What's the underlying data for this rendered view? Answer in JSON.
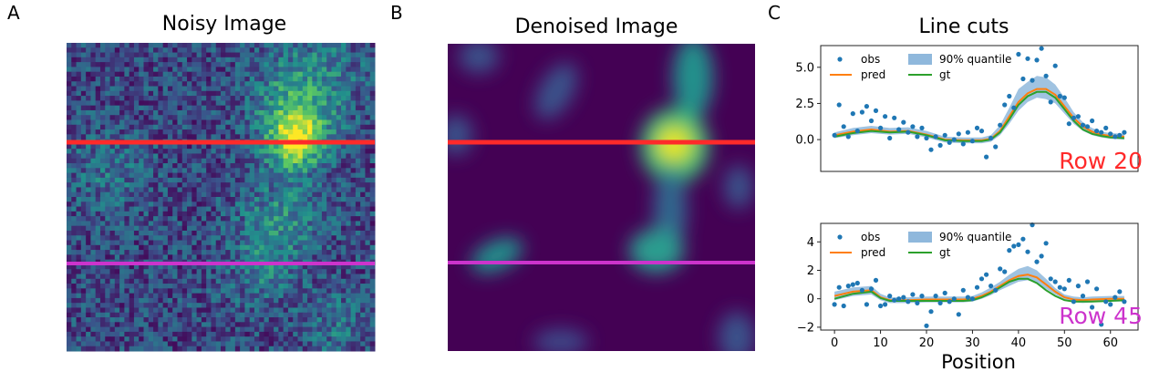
{
  "panels": {
    "a": {
      "label": "A",
      "title": "Noisy Image"
    },
    "b": {
      "label": "B",
      "title": "Denoised Image"
    },
    "c": {
      "label": "C",
      "title": "Line cuts"
    }
  },
  "colors": {
    "obs": "#1f77b4",
    "pred": "#ff7f0e",
    "gt": "#2ca02c",
    "quantile": "#8fb8dc",
    "row20": "#ff2a2a",
    "row45": "#cc33cc"
  },
  "legend": {
    "obs": "obs",
    "pred": "pred",
    "quantile": "90% quantile",
    "gt": "gt"
  },
  "chart_data": [
    {
      "type": "heatmap",
      "title": "Noisy Image",
      "grid_size": [
        64,
        64
      ],
      "colormap": "viridis",
      "highlighted_rows": [
        20,
        45
      ]
    },
    {
      "type": "heatmap",
      "title": "Denoised Image",
      "grid_size": [
        64,
        64
      ],
      "colormap": "viridis",
      "highlighted_rows": [
        20,
        45
      ]
    },
    {
      "type": "scatter",
      "title": "Line cuts",
      "annotation": "Row 20",
      "xlim": [
        -3,
        66
      ],
      "ylim": [
        -2.2,
        6.5
      ],
      "yticks": [
        0.0,
        2.5,
        5.0
      ],
      "ytick_labels": [
        "0.0",
        "2.5",
        "5.0"
      ],
      "obs": {
        "x": [
          0,
          1,
          2,
          3,
          4,
          5,
          6,
          7,
          8,
          9,
          10,
          11,
          12,
          13,
          14,
          15,
          16,
          17,
          18,
          19,
          20,
          21,
          22,
          23,
          24,
          25,
          26,
          27,
          28,
          29,
          30,
          31,
          32,
          33,
          34,
          35,
          36,
          37,
          38,
          39,
          40,
          41,
          42,
          43,
          44,
          45,
          46,
          47,
          48,
          49,
          50,
          51,
          52,
          53,
          54,
          55,
          56,
          57,
          58,
          59,
          60,
          61,
          62,
          63
        ],
        "y": [
          0.3,
          2.4,
          0.9,
          0.2,
          1.8,
          0.6,
          1.9,
          2.3,
          1.3,
          2.0,
          0.8,
          1.6,
          0.1,
          1.5,
          0.7,
          1.2,
          0.5,
          0.9,
          0.2,
          0.8,
          0.1,
          -0.7,
          0.2,
          -0.4,
          0.3,
          -0.2,
          0.0,
          0.4,
          -0.3,
          0.5,
          -0.1,
          0.8,
          0.6,
          -1.2,
          0.1,
          -0.5,
          1.0,
          2.4,
          3.0,
          2.2,
          5.9,
          4.2,
          5.6,
          4.1,
          5.5,
          6.3,
          4.4,
          2.6,
          5.1,
          3.0,
          2.9,
          1.1,
          1.5,
          1.6,
          1.0,
          0.9,
          1.3,
          0.6,
          0.5,
          0.8,
          0.4,
          0.2,
          0.3,
          0.5
        ]
      },
      "pred": {
        "x": [
          0,
          4,
          8,
          12,
          16,
          20,
          24,
          28,
          32,
          34,
          36,
          38,
          40,
          42,
          44,
          46,
          48,
          50,
          52,
          54,
          56,
          58,
          60,
          63
        ],
        "y": [
          0.3,
          0.55,
          0.7,
          0.55,
          0.6,
          0.35,
          0.0,
          -0.05,
          -0.05,
          0.05,
          0.6,
          1.6,
          2.6,
          3.2,
          3.5,
          3.5,
          3.1,
          2.3,
          1.5,
          0.9,
          0.55,
          0.35,
          0.25,
          0.2
        ]
      },
      "gt": {
        "x": [
          0,
          4,
          8,
          12,
          16,
          20,
          24,
          28,
          32,
          34,
          36,
          38,
          40,
          42,
          44,
          46,
          48,
          50,
          52,
          54,
          56,
          58,
          60,
          63
        ],
        "y": [
          0.2,
          0.45,
          0.6,
          0.5,
          0.55,
          0.3,
          -0.05,
          -0.1,
          -0.1,
          0.0,
          0.5,
          1.4,
          2.4,
          3.0,
          3.3,
          3.3,
          2.9,
          2.1,
          1.3,
          0.7,
          0.4,
          0.25,
          0.15,
          0.1
        ]
      },
      "quantile": {
        "x": [
          0,
          4,
          8,
          12,
          16,
          20,
          24,
          28,
          32,
          34,
          36,
          38,
          40,
          42,
          44,
          46,
          48,
          50,
          52,
          54,
          56,
          58,
          60,
          63
        ],
        "low": [
          0.1,
          0.3,
          0.45,
          0.35,
          0.4,
          0.15,
          -0.2,
          -0.25,
          -0.25,
          -0.15,
          0.3,
          1.1,
          2.0,
          2.6,
          2.9,
          2.8,
          2.5,
          1.8,
          1.1,
          0.6,
          0.3,
          0.15,
          0.05,
          0.0
        ],
        "high": [
          0.5,
          0.8,
          0.95,
          0.8,
          0.85,
          0.6,
          0.2,
          0.15,
          0.15,
          0.3,
          1.0,
          2.2,
          3.5,
          4.0,
          4.4,
          4.3,
          3.8,
          2.9,
          1.9,
          1.2,
          0.8,
          0.55,
          0.45,
          0.4
        ]
      }
    },
    {
      "type": "scatter",
      "annotation": "Row 45",
      "xlabel": "Position",
      "xlim": [
        -3,
        66
      ],
      "ylim": [
        -2.2,
        5.3
      ],
      "xticks": [
        0,
        10,
        20,
        30,
        40,
        50,
        60
      ],
      "xtick_labels": [
        "0",
        "10",
        "20",
        "30",
        "40",
        "50",
        "60"
      ],
      "yticks": [
        -2,
        0,
        2,
        4
      ],
      "ytick_labels": [
        "−2",
        "0",
        "2",
        "4"
      ],
      "obs": {
        "x": [
          0,
          1,
          2,
          3,
          4,
          5,
          6,
          7,
          8,
          9,
          10,
          11,
          12,
          13,
          14,
          15,
          16,
          17,
          18,
          19,
          20,
          21,
          22,
          23,
          24,
          25,
          26,
          27,
          28,
          29,
          30,
          31,
          32,
          33,
          34,
          35,
          36,
          37,
          38,
          39,
          40,
          41,
          42,
          43,
          44,
          45,
          46,
          47,
          48,
          49,
          50,
          51,
          52,
          53,
          54,
          55,
          56,
          57,
          58,
          59,
          60,
          61,
          62,
          63
        ],
        "y": [
          -0.4,
          0.8,
          -0.5,
          0.9,
          1.0,
          1.1,
          0.6,
          -0.4,
          0.7,
          1.3,
          -0.5,
          -0.4,
          0.2,
          -0.1,
          0.0,
          0.1,
          -0.2,
          0.3,
          -0.3,
          0.2,
          -1.9,
          -0.9,
          0.2,
          -0.3,
          0.4,
          -0.2,
          0.0,
          -1.1,
          0.6,
          0.1,
          0.0,
          0.8,
          1.4,
          1.7,
          0.9,
          0.6,
          2.1,
          1.9,
          3.4,
          3.7,
          3.8,
          4.2,
          3.3,
          5.2,
          2.6,
          3.0,
          3.9,
          1.4,
          1.2,
          0.8,
          0.7,
          1.3,
          -0.2,
          0.9,
          0.2,
          1.2,
          -0.6,
          0.7,
          -1.8,
          -0.2,
          -0.4,
          0.1,
          0.5,
          -0.2
        ]
      },
      "pred": {
        "x": [
          0,
          4,
          8,
          10,
          12,
          16,
          20,
          24,
          28,
          30,
          32,
          34,
          36,
          38,
          40,
          42,
          44,
          46,
          48,
          50,
          52,
          54,
          56,
          60,
          63
        ],
        "y": [
          0.2,
          0.5,
          0.6,
          0.1,
          -0.1,
          -0.1,
          -0.05,
          -0.05,
          -0.05,
          0.0,
          0.2,
          0.5,
          0.9,
          1.3,
          1.6,
          1.7,
          1.5,
          1.0,
          0.5,
          0.1,
          -0.05,
          -0.1,
          -0.05,
          0.0,
          0.0
        ]
      },
      "gt": {
        "x": [
          0,
          4,
          8,
          10,
          12,
          16,
          20,
          24,
          28,
          30,
          32,
          34,
          36,
          38,
          40,
          42,
          44,
          46,
          48,
          50,
          52,
          54,
          56,
          60,
          63
        ],
        "y": [
          0.0,
          0.35,
          0.5,
          0.05,
          -0.15,
          -0.15,
          -0.15,
          -0.15,
          -0.15,
          -0.1,
          0.1,
          0.4,
          0.8,
          1.2,
          1.4,
          1.4,
          1.1,
          0.6,
          0.2,
          -0.1,
          -0.2,
          -0.2,
          -0.2,
          -0.15,
          -0.1
        ]
      },
      "quantile": {
        "x": [
          0,
          4,
          8,
          10,
          12,
          16,
          20,
          24,
          28,
          30,
          32,
          34,
          36,
          38,
          40,
          42,
          44,
          46,
          48,
          50,
          52,
          54,
          56,
          60,
          63
        ],
        "low": [
          -0.1,
          0.2,
          0.3,
          -0.1,
          -0.3,
          -0.3,
          -0.25,
          -0.25,
          -0.25,
          -0.2,
          0.0,
          0.25,
          0.6,
          0.9,
          1.2,
          1.3,
          1.1,
          0.7,
          0.3,
          -0.05,
          -0.25,
          -0.3,
          -0.25,
          -0.2,
          -0.2
        ],
        "high": [
          0.5,
          0.8,
          0.9,
          0.35,
          0.1,
          0.1,
          0.15,
          0.15,
          0.15,
          0.2,
          0.45,
          0.8,
          1.2,
          1.7,
          2.1,
          2.3,
          2.0,
          1.4,
          0.75,
          0.3,
          0.15,
          0.1,
          0.15,
          0.2,
          0.2
        ]
      }
    }
  ]
}
